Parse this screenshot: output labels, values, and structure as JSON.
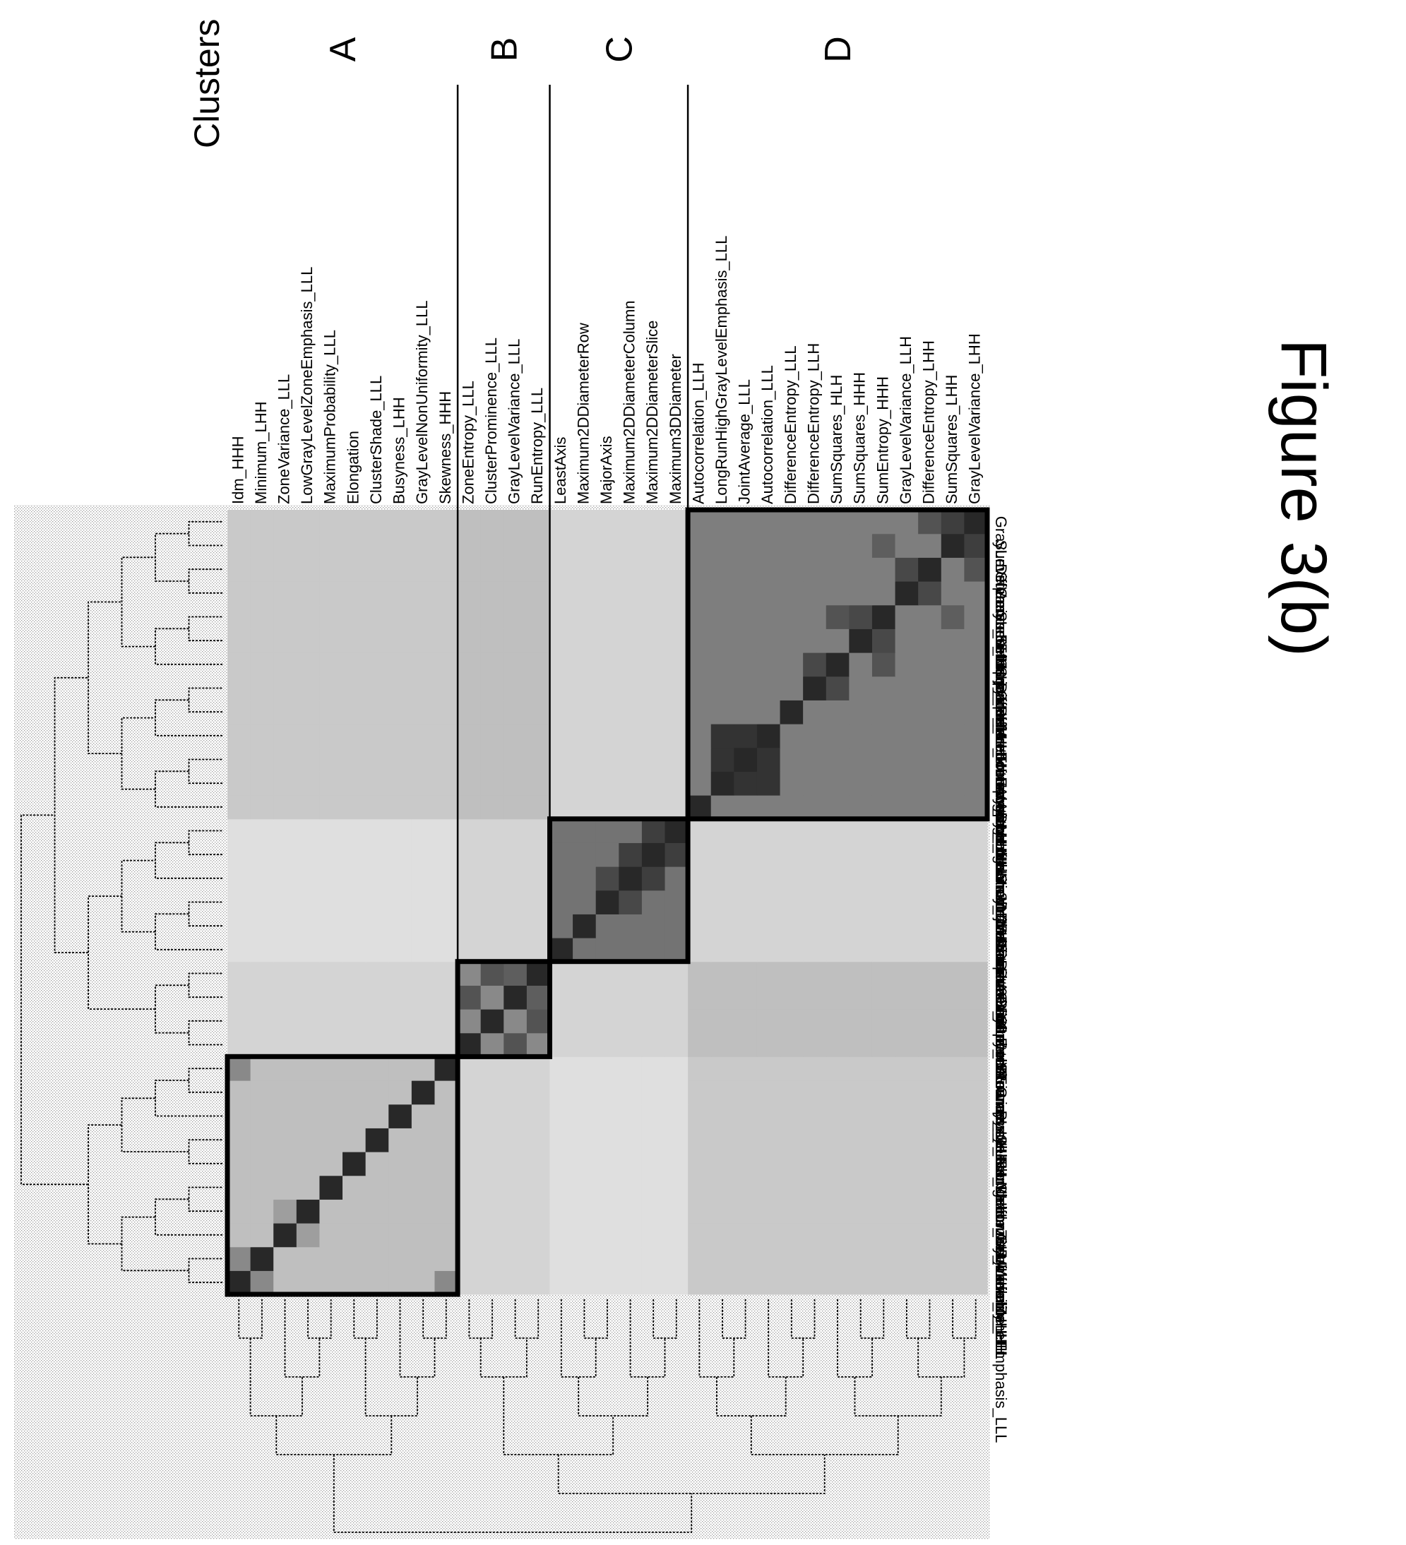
{
  "figure_label": "Figure 3(b)",
  "clusters_label": "Clusters",
  "chart_data": {
    "type": "heatmap",
    "features": [
      "Idm_HHH",
      "Minimum_LHH",
      "ZoneVariance_LLL",
      "LowGrayLevelZoneEmphasis_LLL",
      "MaximumProbability_LLL",
      "Elongation",
      "ClusterShade_LLL",
      "Busyness_LHH",
      "GrayLevelNonUniformity_LLL",
      "Skewness_HHH",
      "ZoneEntropy_LLL",
      "ClusterProminence_LLL",
      "GrayLevelVariance_LLL",
      "RunEntropy_LLL",
      "LeastAxis",
      "Maximum2DDiameterRow",
      "MajorAxis",
      "Maximum2DDiameterColumn",
      "Maximum2DDiameterSlice",
      "Maximum3DDiameter",
      "Autocorrelation_LLH",
      "LongRunHighGrayLevelEmphasis_LLL",
      "JointAverage_LLL",
      "Autocorrelation_LLL",
      "DifferenceEntropy_LLL",
      "DifferenceEntropy_LLH",
      "SumSquares_HLH",
      "SumSquares_HHH",
      "SumEntropy_HHH",
      "GrayLevelVariance_LLH",
      "DifferenceEntropy_LHH",
      "SumSquares_LHH",
      "GrayLevelVariance_LHH"
    ],
    "clusters": [
      {
        "name": "A",
        "start": 0,
        "end": 10
      },
      {
        "name": "B",
        "start": 10,
        "end": 14
      },
      {
        "name": "C",
        "start": 14,
        "end": 20
      },
      {
        "name": "D",
        "start": 20,
        "end": 33
      }
    ],
    "block_values": [
      [
        0.3,
        0.2,
        0.15,
        0.25
      ],
      [
        0.2,
        0.55,
        0.2,
        0.3
      ],
      [
        0.15,
        0.2,
        0.65,
        0.2
      ],
      [
        0.25,
        0.3,
        0.2,
        0.6
      ]
    ],
    "diagonal_value": 1.0,
    "highlights": [
      {
        "row": 0,
        "col": 1,
        "value": 0.55
      },
      {
        "row": 0,
        "col": 9,
        "value": 0.55
      },
      {
        "row": 2,
        "col": 3,
        "value": 0.45
      },
      {
        "row": 10,
        "col": 12,
        "value": 0.8
      },
      {
        "row": 11,
        "col": 13,
        "value": 0.8
      },
      {
        "row": 12,
        "col": 13,
        "value": 0.75
      },
      {
        "row": 16,
        "col": 17,
        "value": 0.85
      },
      {
        "row": 17,
        "col": 18,
        "value": 0.9
      },
      {
        "row": 18,
        "col": 19,
        "value": 0.9
      },
      {
        "row": 21,
        "col": 22,
        "value": 0.95
      },
      {
        "row": 21,
        "col": 23,
        "value": 0.95
      },
      {
        "row": 22,
        "col": 23,
        "value": 0.95
      },
      {
        "row": 25,
        "col": 26,
        "value": 0.85
      },
      {
        "row": 27,
        "col": 28,
        "value": 0.85
      },
      {
        "row": 26,
        "col": 28,
        "value": 0.8
      },
      {
        "row": 29,
        "col": 30,
        "value": 0.85
      },
      {
        "row": 31,
        "col": 32,
        "value": 0.9
      },
      {
        "row": 30,
        "col": 32,
        "value": 0.8
      },
      {
        "row": 28,
        "col": 31,
        "value": 0.75
      }
    ]
  }
}
